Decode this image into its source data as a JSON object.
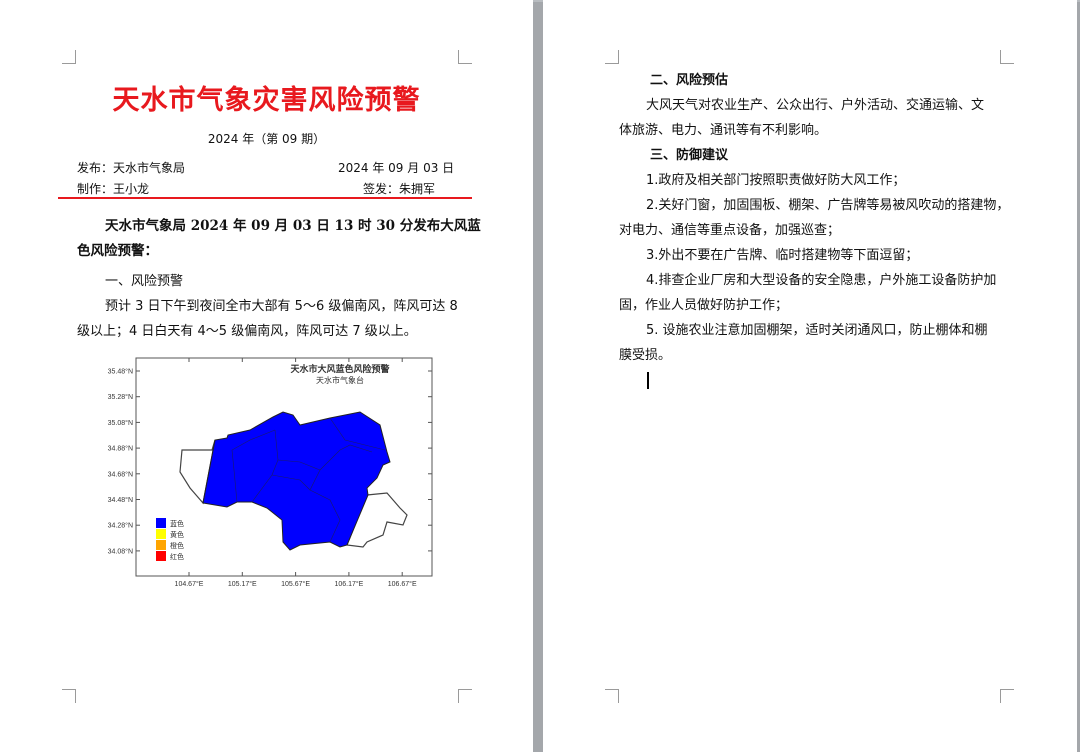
{
  "page1": {
    "title": "天水市气象灾害风险预警",
    "issue": "2024 年（第 09 期）",
    "publisher": "发布：天水市气象局",
    "date": "2024 年 09 月 03 日",
    "author": "制作：王小龙",
    "signer": "签发：朱拥军",
    "lead_line1": "天水市气象局 2024 年 09 月 03 日 13 时 30 分发布大风蓝",
    "lead_line2": "色风险预警：",
    "section1": "一、风险预警",
    "para1_line1": "预计 3 日下午到夜间全市大部有 5～6 级偏南风，阵风可达 8",
    "para1_line2": "级以上；4 日白天有 4～5 级偏南风，阵风可达 7 级以上。",
    "map": {
      "title": "天水市大风蓝色风险预警",
      "subtitle": "天水市气象台",
      "y_ticks": [
        "35.48°N",
        "35.28°N",
        "35.08°N",
        "34.88°N",
        "34.68°N",
        "34.48°N",
        "34.28°N",
        "34.08°N"
      ],
      "x_ticks": [
        "104.67°E",
        "105.17°E",
        "105.67°E",
        "106.17°E",
        "106.67°E"
      ],
      "legend": [
        {
          "label": "蓝色",
          "color": "#0000ff"
        },
        {
          "label": "黄色",
          "color": "#ffff00"
        },
        {
          "label": "橙色",
          "color": "#ffa500"
        },
        {
          "label": "红色",
          "color": "#ff0000"
        }
      ],
      "warning_color": "#0000ff"
    }
  },
  "page2": {
    "section2": "二、风险预估",
    "para2_line1": "大风天气对农业生产、公众出行、户外活动、交通运输、文",
    "para2_line2": "体旅游、电力、通讯等有不利影响。",
    "section3": "三、防御建议",
    "item1": "1.政府及相关部门按照职责做好防大风工作；",
    "item2_line1": "2.关好门窗，加固围板、棚架、广告牌等易被风吹动的搭建物，",
    "item2_line2": "对电力、通信等重点设备，加强巡查；",
    "item3": "3.外出不要在广告牌、临时搭建物等下面逗留；",
    "item4_line1": "4.排查企业厂房和大型设备的安全隐患，户外施工设备防护加",
    "item4_line2": "固，作业人员做好防护工作；",
    "item5_line1": "5. 设施农业注意加固棚架，适时关闭通风口，防止棚体和棚",
    "item5_line2": "膜受损。"
  }
}
